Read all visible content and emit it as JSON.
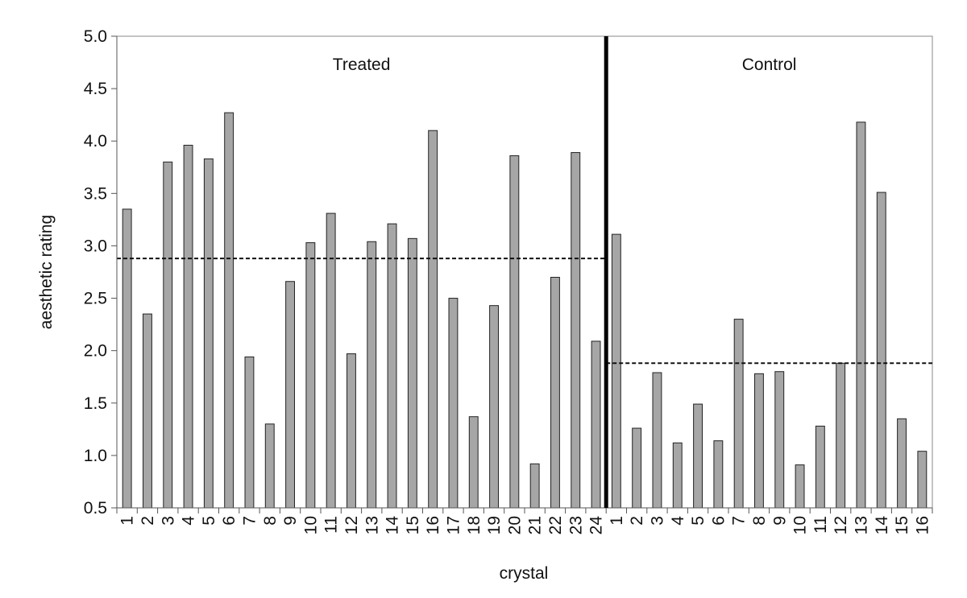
{
  "chart_data": {
    "type": "bar",
    "xlabel": "crystal",
    "ylabel": "aesthetic rating",
    "ylim": [
      0.5,
      5.0
    ],
    "yticks": [
      "0.5",
      "1.0",
      "1.5",
      "2.0",
      "2.5",
      "3.0",
      "3.5",
      "4.0",
      "4.5",
      "5.0"
    ],
    "grid": false,
    "bar_color": "#a6a6a6",
    "groups": [
      {
        "name": "Treated",
        "categories": [
          "1",
          "2",
          "3",
          "4",
          "5",
          "6",
          "7",
          "8",
          "9",
          "10",
          "11",
          "12",
          "13",
          "14",
          "15",
          "16",
          "17",
          "18",
          "19",
          "20",
          "21",
          "22",
          "23",
          "24"
        ],
        "values": [
          3.35,
          2.35,
          3.8,
          3.96,
          3.83,
          4.27,
          1.94,
          1.3,
          2.66,
          3.03,
          3.31,
          1.97,
          3.04,
          3.21,
          3.07,
          4.1,
          2.5,
          1.37,
          2.43,
          3.86,
          0.92,
          2.7,
          3.89,
          2.09
        ],
        "mean": 2.88
      },
      {
        "name": "Control",
        "categories": [
          "1",
          "2",
          "3",
          "4",
          "5",
          "6",
          "7",
          "8",
          "9",
          "10",
          "11",
          "12",
          "13",
          "14",
          "15",
          "16"
        ],
        "values": [
          3.11,
          1.26,
          1.79,
          1.12,
          1.49,
          1.14,
          2.3,
          1.78,
          1.8,
          0.91,
          1.28,
          1.88,
          4.18,
          3.51,
          1.35,
          1.04
        ],
        "mean": 1.88
      }
    ]
  }
}
